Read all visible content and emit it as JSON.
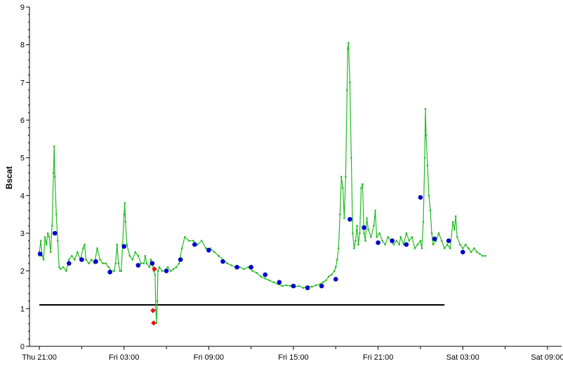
{
  "chart_data": {
    "type": "line",
    "title": "",
    "xlabel": "",
    "ylabel": "Bscat",
    "ylim": [
      0,
      9
    ],
    "yticks": [
      0,
      1,
      2,
      3,
      4,
      5,
      6,
      7,
      8,
      9
    ],
    "xlim_hours": [
      -0.7,
      37
    ],
    "xticks": [
      {
        "hour": 0,
        "label": "Thu 21:00"
      },
      {
        "hour": 6,
        "label": "Fri 03:00"
      },
      {
        "hour": 12,
        "label": "Fri 09:00"
      },
      {
        "hour": 18,
        "label": "Fri 15:00"
      },
      {
        "hour": 24,
        "label": "Fri 21:00"
      },
      {
        "hour": 30,
        "label": "Sat 03:00"
      },
      {
        "hour": 36,
        "label": "Sat 09:00"
      }
    ],
    "grid": false,
    "legend": "none",
    "colors": {
      "line": "#22bb22",
      "points": "#0000cc",
      "flagged": "#ee1111",
      "threshold": "#000000",
      "axis": "#000000"
    },
    "series": [
      {
        "values": [
          [
            0.0,
            2.5
          ],
          [
            0.1,
            2.8
          ],
          [
            0.2,
            2.4
          ],
          [
            0.3,
            2.3
          ],
          [
            0.4,
            2.9
          ],
          [
            0.5,
            2.7
          ],
          [
            0.6,
            3.0
          ],
          [
            0.7,
            2.9
          ],
          [
            0.8,
            2.5
          ],
          [
            0.9,
            3.2
          ],
          [
            1.0,
            4.6
          ],
          [
            1.05,
            5.3
          ],
          [
            1.1,
            4.5
          ],
          [
            1.2,
            3.5
          ],
          [
            1.3,
            2.8
          ],
          [
            1.4,
            2.1
          ],
          [
            1.5,
            2.05
          ],
          [
            1.7,
            2.1
          ],
          [
            1.9,
            2.0
          ],
          [
            2.1,
            2.3
          ],
          [
            2.3,
            2.4
          ],
          [
            2.5,
            2.3
          ],
          [
            2.7,
            2.5
          ],
          [
            2.9,
            2.3
          ],
          [
            3.1,
            2.6
          ],
          [
            3.2,
            2.7
          ],
          [
            3.3,
            2.3
          ],
          [
            3.5,
            2.2
          ],
          [
            3.7,
            2.3
          ],
          [
            3.9,
            2.2
          ],
          [
            4.1,
            2.6
          ],
          [
            4.3,
            2.3
          ],
          [
            4.5,
            2.2
          ],
          [
            4.7,
            2.2
          ],
          [
            4.9,
            2.1
          ],
          [
            5.1,
            2.0
          ],
          [
            5.3,
            2.0
          ],
          [
            5.4,
            2.2
          ],
          [
            5.5,
            2.7
          ],
          [
            5.6,
            2.2
          ],
          [
            5.7,
            2.0
          ],
          [
            5.8,
            2.0
          ],
          [
            5.9,
            2.7
          ],
          [
            6.0,
            3.5
          ],
          [
            6.05,
            3.8
          ],
          [
            6.1,
            3.3
          ],
          [
            6.2,
            2.7
          ],
          [
            6.4,
            2.4
          ],
          [
            6.6,
            2.3
          ],
          [
            6.8,
            2.5
          ],
          [
            7.0,
            2.4
          ],
          [
            7.2,
            2.2
          ],
          [
            7.4,
            2.2
          ],
          [
            7.5,
            2.4
          ],
          [
            7.6,
            2.2
          ],
          [
            7.8,
            2.1
          ],
          [
            7.9,
            2.3
          ],
          [
            8.0,
            2.2
          ],
          [
            8.1,
            2.0
          ],
          [
            8.2,
            1.9
          ],
          [
            8.25,
            0.97
          ],
          [
            8.3,
            0.62
          ],
          [
            8.35,
            1.2
          ],
          [
            8.4,
            2.0
          ],
          [
            8.5,
            2.1
          ],
          [
            8.7,
            2.0
          ],
          [
            8.9,
            2.0
          ],
          [
            9.1,
            2.1
          ],
          [
            9.3,
            2.0
          ],
          [
            9.5,
            2.05
          ],
          [
            9.7,
            2.1
          ],
          [
            9.9,
            2.2
          ],
          [
            10.1,
            2.6
          ],
          [
            10.3,
            2.9
          ],
          [
            10.6,
            2.8
          ],
          [
            10.9,
            2.8
          ],
          [
            11.2,
            2.7
          ],
          [
            11.5,
            2.8
          ],
          [
            11.8,
            2.6
          ],
          [
            12.1,
            2.6
          ],
          [
            12.4,
            2.5
          ],
          [
            12.7,
            2.4
          ],
          [
            13.0,
            2.3
          ],
          [
            13.3,
            2.2
          ],
          [
            13.6,
            2.15
          ],
          [
            13.9,
            2.1
          ],
          [
            14.2,
            2.1
          ],
          [
            14.5,
            2.05
          ],
          [
            14.8,
            2.1
          ],
          [
            15.1,
            2.0
          ],
          [
            15.4,
            1.95
          ],
          [
            15.7,
            1.85
          ],
          [
            16.0,
            1.8
          ],
          [
            16.3,
            1.75
          ],
          [
            16.6,
            1.7
          ],
          [
            16.9,
            1.65
          ],
          [
            17.2,
            1.6
          ],
          [
            17.5,
            1.62
          ],
          [
            17.8,
            1.6
          ],
          [
            18.1,
            1.58
          ],
          [
            18.4,
            1.6
          ],
          [
            18.7,
            1.55
          ],
          [
            19.0,
            1.6
          ],
          [
            19.3,
            1.58
          ],
          [
            19.6,
            1.62
          ],
          [
            19.9,
            1.65
          ],
          [
            20.1,
            1.7
          ],
          [
            20.3,
            1.75
          ],
          [
            20.5,
            1.85
          ],
          [
            20.7,
            1.9
          ],
          [
            20.9,
            2.0
          ],
          [
            21.0,
            2.1
          ],
          [
            21.1,
            2.3
          ],
          [
            21.2,
            2.6
          ],
          [
            21.3,
            3.5
          ],
          [
            21.4,
            4.5
          ],
          [
            21.5,
            4.2
          ],
          [
            21.6,
            3.4
          ],
          [
            21.7,
            4.5
          ],
          [
            21.8,
            6.8
          ],
          [
            21.85,
            7.9
          ],
          [
            21.9,
            8.05
          ],
          [
            22.0,
            7.0
          ],
          [
            22.1,
            5.0
          ],
          [
            22.2,
            3.0
          ],
          [
            22.3,
            2.6
          ],
          [
            22.4,
            2.8
          ],
          [
            22.5,
            3.2
          ],
          [
            22.6,
            2.7
          ],
          [
            22.7,
            3.0
          ],
          [
            22.8,
            4.2
          ],
          [
            22.9,
            4.3
          ],
          [
            23.0,
            3.0
          ],
          [
            23.1,
            2.8
          ],
          [
            23.2,
            3.4
          ],
          [
            23.3,
            3.1
          ],
          [
            23.5,
            2.9
          ],
          [
            23.7,
            3.2
          ],
          [
            23.8,
            3.6
          ],
          [
            23.9,
            2.9
          ],
          [
            24.1,
            3.0
          ],
          [
            24.3,
            2.8
          ],
          [
            24.5,
            2.7
          ],
          [
            24.7,
            2.9
          ],
          [
            24.9,
            2.8
          ],
          [
            25.1,
            2.7
          ],
          [
            25.3,
            2.8
          ],
          [
            25.5,
            2.7
          ],
          [
            25.6,
            2.9
          ],
          [
            25.8,
            2.7
          ],
          [
            26.0,
            3.0
          ],
          [
            26.2,
            2.8
          ],
          [
            26.4,
            2.9
          ],
          [
            26.6,
            2.6
          ],
          [
            26.8,
            2.7
          ],
          [
            27.0,
            2.8
          ],
          [
            27.1,
            2.6
          ],
          [
            27.2,
            3.3
          ],
          [
            27.3,
            5.0
          ],
          [
            27.35,
            6.3
          ],
          [
            27.4,
            5.6
          ],
          [
            27.5,
            4.8
          ],
          [
            27.6,
            4.0
          ],
          [
            27.7,
            3.6
          ],
          [
            27.8,
            3.0
          ],
          [
            27.9,
            2.7
          ],
          [
            28.1,
            2.8
          ],
          [
            28.3,
            3.0
          ],
          [
            28.5,
            2.8
          ],
          [
            28.7,
            2.6
          ],
          [
            28.9,
            2.7
          ],
          [
            29.1,
            2.6
          ],
          [
            29.3,
            3.3
          ],
          [
            29.4,
            3.1
          ],
          [
            29.5,
            3.45
          ],
          [
            29.6,
            2.9
          ],
          [
            29.8,
            2.7
          ],
          [
            30.0,
            2.6
          ],
          [
            30.2,
            2.7
          ],
          [
            30.4,
            2.6
          ],
          [
            30.6,
            2.5
          ],
          [
            30.8,
            2.6
          ],
          [
            31.0,
            2.5
          ],
          [
            31.2,
            2.45
          ],
          [
            31.4,
            2.4
          ],
          [
            31.6,
            2.4
          ]
        ]
      }
    ],
    "markers_blue": [
      [
        0.05,
        2.45
      ],
      [
        1.1,
        3.0
      ],
      [
        2.1,
        2.2
      ],
      [
        3.0,
        2.3
      ],
      [
        4.0,
        2.25
      ],
      [
        5.0,
        1.97
      ],
      [
        6.0,
        2.65
      ],
      [
        7.0,
        2.15
      ],
      [
        8.0,
        2.2
      ],
      [
        9.0,
        2.0
      ],
      [
        10.0,
        2.3
      ],
      [
        11.0,
        2.7
      ],
      [
        12.0,
        2.55
      ],
      [
        13.0,
        2.25
      ],
      [
        14.0,
        2.1
      ],
      [
        15.0,
        2.1
      ],
      [
        16.0,
        1.9
      ],
      [
        17.0,
        1.7
      ],
      [
        18.0,
        1.6
      ],
      [
        19.0,
        1.55
      ],
      [
        20.0,
        1.6
      ],
      [
        21.0,
        1.78
      ],
      [
        22.0,
        3.37
      ],
      [
        23.0,
        3.15
      ],
      [
        24.0,
        2.75
      ],
      [
        25.0,
        2.8
      ],
      [
        26.0,
        2.7
      ],
      [
        27.0,
        3.95
      ],
      [
        28.0,
        2.85
      ],
      [
        29.0,
        2.8
      ],
      [
        30.0,
        2.5
      ]
    ],
    "markers_red": [
      [
        8.05,
        0.95
      ],
      [
        8.1,
        0.62
      ],
      [
        8.15,
        2.05
      ]
    ],
    "threshold": {
      "y": 1.1,
      "from_hour": 0,
      "to_hour": 28.7
    }
  }
}
